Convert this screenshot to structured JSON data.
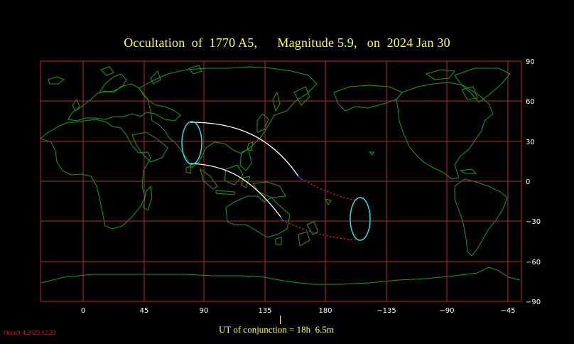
{
  "title": "Occultation  of  1770 A5,      Magnitude 5.9,   on  2024 Jan 30",
  "conjunction": "UT of conjunction = 18h  6.5m",
  "version": "Occult 4.2023.12.20",
  "longitude_ticks": [
    "0",
    "45",
    "90",
    "135",
    "180",
    "−135",
    "−90",
    "−45"
  ],
  "latitude_ticks": [
    "90",
    "60",
    "30",
    "0",
    "−30",
    "−60",
    "−90"
  ],
  "colors": {
    "background": "#000000",
    "grid": "#b03030",
    "coastline": "#1f9a1f",
    "title": "#ffff55",
    "path_day": "#ffffff",
    "path_night": "#e03030",
    "rise_set_loop": "#33dddd",
    "version": "#d02020"
  }
}
